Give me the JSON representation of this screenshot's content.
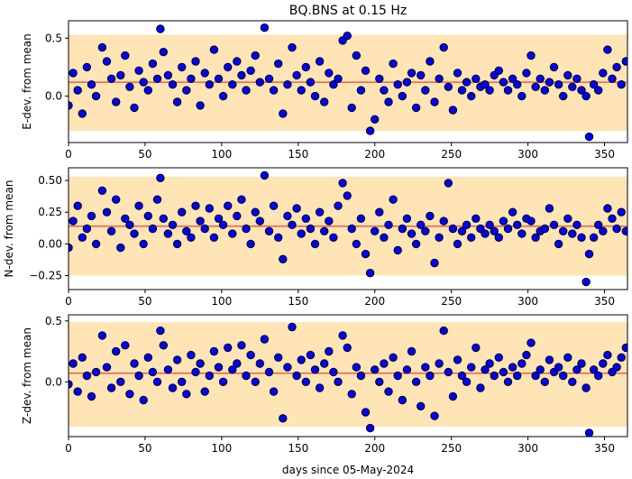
{
  "figure": {
    "title": "BQ.BNS at 0.15 Hz",
    "xlabel": "days since 05-May-2024"
  },
  "colors": {
    "band": "#ffe4b5",
    "mean_line": "#e8604c",
    "point_fill": "#0000ff",
    "point_edge": "#000000"
  },
  "chart_data": [
    {
      "type": "scatter",
      "panel": "E",
      "ylabel": "E-dev. from mean",
      "xlim": [
        0,
        365
      ],
      "ylim": [
        -0.4,
        0.65
      ],
      "xticks": [
        0,
        50,
        100,
        150,
        200,
        250,
        300,
        350
      ],
      "yticks": [
        0.0,
        0.5
      ],
      "ytick_labels": [
        "0.0",
        "0.5"
      ],
      "band": [
        -0.3,
        0.53
      ],
      "mean": 0.12,
      "grid": false,
      "x": [
        0,
        3,
        6,
        9,
        12,
        15,
        18,
        22,
        25,
        28,
        31,
        34,
        37,
        40,
        43,
        46,
        49,
        52,
        55,
        58,
        60,
        62,
        65,
        68,
        71,
        74,
        77,
        80,
        83,
        86,
        89,
        92,
        95,
        98,
        101,
        104,
        107,
        110,
        113,
        116,
        119,
        122,
        125,
        128,
        131,
        134,
        137,
        140,
        143,
        146,
        149,
        152,
        155,
        158,
        161,
        164,
        167,
        170,
        173,
        176,
        179,
        182,
        185,
        188,
        191,
        194,
        197,
        200,
        203,
        206,
        209,
        212,
        215,
        218,
        221,
        224,
        227,
        230,
        233,
        236,
        239,
        242,
        245,
        248,
        251,
        254,
        257,
        260,
        263,
        266,
        269,
        272,
        275,
        278,
        281,
        284,
        287,
        290,
        293,
        296,
        299,
        302,
        305,
        308,
        311,
        314,
        317,
        320,
        323,
        326,
        329,
        332,
        335,
        338,
        340,
        343,
        346,
        349,
        352,
        355,
        358,
        361,
        364
      ],
      "y": [
        -0.08,
        0.2,
        0.05,
        -0.15,
        0.25,
        0.1,
        0.0,
        0.42,
        0.3,
        0.15,
        -0.05,
        0.18,
        0.35,
        0.08,
        -0.1,
        0.22,
        0.12,
        0.05,
        0.28,
        0.15,
        0.58,
        0.38,
        0.18,
        0.1,
        -0.05,
        0.25,
        0.05,
        0.15,
        0.3,
        -0.08,
        0.2,
        0.1,
        0.4,
        0.15,
        0.0,
        0.25,
        0.1,
        0.3,
        0.18,
        0.05,
        0.22,
        0.35,
        0.12,
        0.59,
        0.15,
        0.05,
        0.28,
        -0.15,
        0.1,
        0.42,
        0.18,
        0.05,
        0.25,
        0.12,
        0.0,
        0.3,
        -0.05,
        0.2,
        0.1,
        0.15,
        0.48,
        0.52,
        -0.1,
        0.35,
        0.05,
        0.22,
        -0.3,
        -0.2,
        0.15,
        0.05,
        -0.05,
        0.28,
        0.1,
        0.0,
        0.12,
        0.2,
        -0.1,
        0.18,
        0.05,
        0.3,
        -0.05,
        0.15,
        0.42,
        0.08,
        -0.12,
        0.2,
        0.05,
        0.12,
        0.0,
        0.15,
        0.08,
        0.1,
        0.05,
        0.18,
        0.22,
        0.12,
        0.05,
        0.15,
        0.1,
        0.0,
        0.2,
        0.35,
        0.08,
        0.15,
        0.05,
        0.12,
        0.25,
        0.1,
        0.0,
        0.18,
        0.08,
        0.15,
        0.05,
        0.0,
        -0.35,
        0.1,
        0.05,
        0.2,
        0.4,
        0.15,
        0.25,
        0.1,
        0.3
      ]
    },
    {
      "type": "scatter",
      "panel": "N",
      "ylabel": "N-dev. from mean",
      "xlim": [
        0,
        365
      ],
      "ylim": [
        -0.36,
        0.6
      ],
      "xticks": [
        0,
        50,
        100,
        150,
        200,
        250,
        300,
        350
      ],
      "yticks": [
        -0.25,
        0.0,
        0.25,
        0.5
      ],
      "ytick_labels": [
        "−0.25",
        "0.00",
        "0.25",
        "0.50"
      ],
      "band": [
        -0.25,
        0.53
      ],
      "mean": 0.14,
      "grid": false,
      "x": [
        0,
        3,
        6,
        9,
        12,
        15,
        18,
        22,
        25,
        28,
        31,
        34,
        37,
        40,
        43,
        46,
        49,
        52,
        55,
        58,
        60,
        62,
        65,
        68,
        71,
        74,
        77,
        80,
        83,
        86,
        89,
        92,
        95,
        98,
        101,
        104,
        107,
        110,
        113,
        116,
        119,
        122,
        125,
        128,
        131,
        134,
        137,
        140,
        143,
        146,
        149,
        152,
        155,
        158,
        161,
        164,
        167,
        170,
        173,
        176,
        179,
        182,
        185,
        188,
        191,
        194,
        197,
        200,
        203,
        206,
        209,
        212,
        215,
        218,
        221,
        224,
        227,
        230,
        233,
        236,
        239,
        242,
        245,
        248,
        251,
        254,
        257,
        260,
        263,
        266,
        269,
        272,
        275,
        278,
        281,
        284,
        287,
        290,
        293,
        296,
        299,
        302,
        305,
        308,
        311,
        314,
        317,
        320,
        323,
        326,
        329,
        332,
        335,
        338,
        340,
        343,
        346,
        349,
        352,
        355,
        358,
        361,
        364
      ],
      "y": [
        -0.03,
        0.18,
        0.3,
        0.05,
        0.12,
        0.22,
        0.0,
        0.42,
        0.25,
        0.1,
        0.35,
        -0.03,
        0.2,
        0.15,
        0.08,
        0.3,
        0.0,
        0.22,
        0.12,
        0.35,
        0.52,
        0.2,
        0.08,
        0.15,
        0.0,
        0.25,
        0.1,
        0.05,
        0.3,
        0.18,
        0.12,
        0.28,
        0.05,
        0.2,
        0.15,
        0.3,
        0.08,
        0.22,
        0.35,
        0.12,
        0.0,
        0.25,
        0.18,
        0.54,
        0.1,
        0.3,
        0.05,
        -0.12,
        0.22,
        0.15,
        0.28,
        0.08,
        0.2,
        0.12,
        0.0,
        0.25,
        0.1,
        0.18,
        0.05,
        0.3,
        0.48,
        0.38,
        0.12,
        0.0,
        0.2,
        -0.08,
        -0.23,
        0.1,
        0.25,
        0.05,
        0.15,
        0.35,
        -0.05,
        0.12,
        0.2,
        0.08,
        0.0,
        0.15,
        0.1,
        0.22,
        -0.15,
        0.05,
        0.18,
        0.48,
        0.12,
        0.0,
        0.1,
        0.15,
        0.05,
        0.2,
        0.12,
        0.08,
        0.15,
        0.1,
        0.05,
        0.18,
        0.12,
        0.25,
        0.15,
        0.08,
        0.2,
        0.18,
        0.05,
        0.1,
        0.12,
        0.28,
        0.15,
        0.0,
        0.1,
        0.2,
        0.08,
        0.15,
        0.05,
        -0.3,
        -0.08,
        0.05,
        0.15,
        0.1,
        0.28,
        0.2,
        0.12,
        0.25,
        0.1
      ]
    },
    {
      "type": "scatter",
      "panel": "Z",
      "ylabel": "Z-dev. from mean",
      "xlim": [
        0,
        365
      ],
      "ylim": [
        -0.45,
        0.55
      ],
      "xticks": [
        0,
        50,
        100,
        150,
        200,
        250,
        300,
        350
      ],
      "yticks": [
        0.0,
        0.5
      ],
      "ytick_labels": [
        "0.0",
        "0.5"
      ],
      "band": [
        -0.37,
        0.49
      ],
      "mean": 0.07,
      "grid": false,
      "x": [
        0,
        3,
        6,
        9,
        12,
        15,
        18,
        22,
        25,
        28,
        31,
        34,
        37,
        40,
        43,
        46,
        49,
        52,
        55,
        58,
        60,
        62,
        65,
        68,
        71,
        74,
        77,
        80,
        83,
        86,
        89,
        92,
        95,
        98,
        101,
        104,
        107,
        110,
        113,
        116,
        119,
        122,
        125,
        128,
        131,
        134,
        137,
        140,
        143,
        146,
        149,
        152,
        155,
        158,
        161,
        164,
        167,
        170,
        173,
        176,
        179,
        182,
        185,
        188,
        191,
        194,
        197,
        200,
        203,
        206,
        209,
        212,
        215,
        218,
        221,
        224,
        227,
        230,
        233,
        236,
        239,
        242,
        245,
        248,
        251,
        254,
        257,
        260,
        263,
        266,
        269,
        272,
        275,
        278,
        281,
        284,
        287,
        290,
        293,
        296,
        299,
        302,
        305,
        308,
        311,
        314,
        317,
        320,
        323,
        326,
        329,
        332,
        335,
        338,
        340,
        343,
        346,
        349,
        352,
        355,
        358,
        361,
        364
      ],
      "y": [
        -0.02,
        0.15,
        -0.08,
        0.2,
        0.05,
        -0.12,
        0.08,
        0.38,
        0.12,
        -0.05,
        0.25,
        0.0,
        0.3,
        -0.1,
        0.15,
        0.05,
        -0.15,
        0.2,
        0.08,
        0.0,
        0.42,
        0.3,
        0.1,
        -0.05,
        0.18,
        0.0,
        -0.1,
        0.22,
        0.08,
        0.15,
        -0.08,
        0.05,
        0.25,
        0.12,
        0.0,
        0.28,
        0.1,
        0.15,
        0.3,
        0.05,
        0.22,
        0.0,
        0.15,
        0.35,
        0.08,
        -0.08,
        0.2,
        -0.3,
        0.12,
        0.45,
        0.05,
        0.18,
        0.0,
        0.22,
        0.1,
        -0.05,
        0.15,
        0.25,
        0.08,
        0.0,
        0.38,
        0.28,
        -0.1,
        0.12,
        0.05,
        -0.25,
        -0.38,
        0.1,
        0.0,
        0.15,
        -0.08,
        0.2,
        0.05,
        -0.15,
        0.1,
        0.25,
        0.0,
        -0.2,
        0.12,
        0.05,
        -0.28,
        0.15,
        0.42,
        0.08,
        -0.12,
        0.18,
        0.05,
        0.0,
        0.12,
        0.28,
        -0.05,
        0.1,
        0.15,
        0.05,
        0.2,
        0.08,
        0.0,
        0.12,
        0.05,
        0.15,
        0.22,
        0.32,
        0.05,
        0.1,
        0.0,
        0.18,
        0.08,
        0.12,
        0.05,
        0.2,
        0.0,
        0.1,
        0.15,
        -0.05,
        -0.42,
        0.1,
        0.05,
        0.15,
        0.22,
        0.08,
        0.12,
        0.2,
        0.28
      ]
    }
  ]
}
